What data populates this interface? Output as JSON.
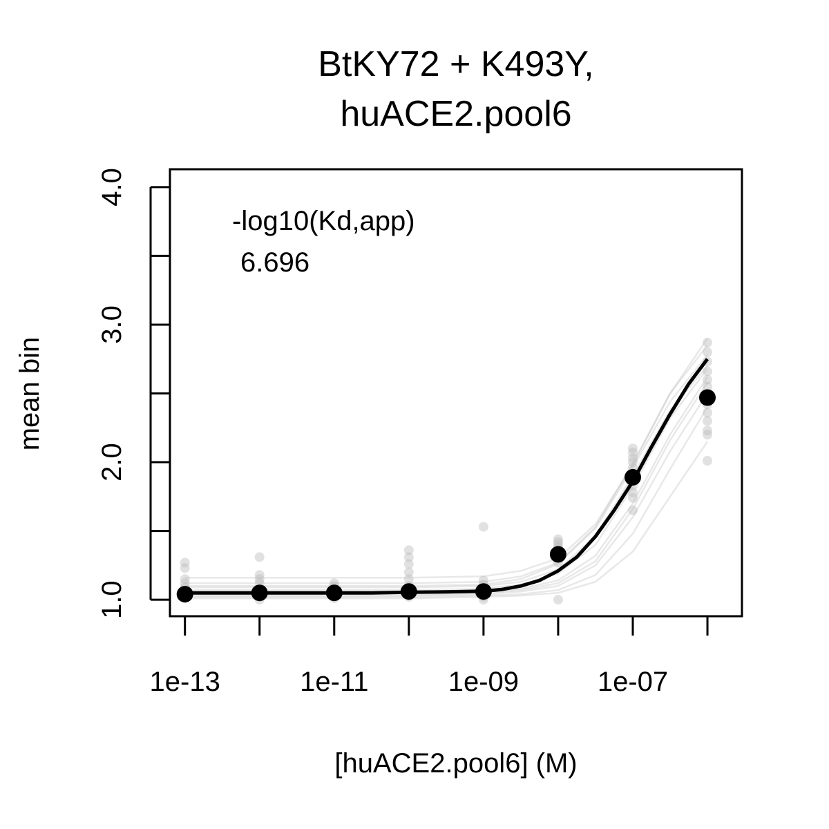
{
  "chart_data": {
    "type": "scatter",
    "title_lines": [
      "BtKY72 + K493Y,",
      "huACE2.pool6"
    ],
    "xlabel": "[huACE2.pool6] (M)",
    "ylabel": "mean bin",
    "x_scale": "log10",
    "xlim": [
      6.3e-14,
      2.9e-06
    ],
    "ylim": [
      0.88,
      4.13
    ],
    "x_ticks": [
      1e-13,
      1e-11,
      1e-09,
      1e-07
    ],
    "x_tick_labels": [
      "1e-13",
      "1e-11",
      "1e-09",
      "1e-07"
    ],
    "x_minor_ticks": [
      1e-12,
      1e-10,
      1e-08,
      1e-06
    ],
    "y_ticks": [
      1.0,
      1.5,
      2.0,
      2.5,
      3.0,
      3.5,
      4.0
    ],
    "y_tick_labels": [
      "1.0",
      "",
      "2.0",
      "",
      "3.0",
      "",
      "4.0"
    ],
    "annotation": {
      "label": "-log10(Kd,app)",
      "value": "6.696"
    },
    "colors": {
      "main": "#000000",
      "replicate": "#bdbdbd"
    },
    "series": [
      {
        "role": "mean",
        "x": [
          1e-13,
          1e-12,
          1e-11,
          1e-10,
          1e-09,
          1e-08,
          1e-07,
          1e-06
        ],
        "y": [
          1.04,
          1.05,
          1.05,
          1.06,
          1.06,
          1.33,
          1.89,
          2.47
        ]
      },
      {
        "role": "replicates",
        "points": [
          [
            1e-13,
            1.27
          ],
          [
            1e-13,
            1.23
          ],
          [
            1e-13,
            1.15
          ],
          [
            1e-13,
            1.12
          ],
          [
            1e-13,
            1.09
          ],
          [
            1e-13,
            1.06
          ],
          [
            1e-13,
            1.03
          ],
          [
            1e-13,
            1.01
          ],
          [
            1e-12,
            1.31
          ],
          [
            1e-12,
            1.18
          ],
          [
            1e-12,
            1.15
          ],
          [
            1e-12,
            1.12
          ],
          [
            1e-12,
            1.08
          ],
          [
            1e-12,
            1.05
          ],
          [
            1e-12,
            1.02
          ],
          [
            1e-12,
            1.0
          ],
          [
            1e-11,
            1.12
          ],
          [
            1e-11,
            1.1
          ],
          [
            1e-11,
            1.08
          ],
          [
            1e-11,
            1.05
          ],
          [
            1e-11,
            1.03
          ],
          [
            1e-11,
            1.01
          ],
          [
            1e-10,
            1.36
          ],
          [
            1e-10,
            1.31
          ],
          [
            1e-10,
            1.26
          ],
          [
            1e-10,
            1.2
          ],
          [
            1e-10,
            1.15
          ],
          [
            1e-10,
            1.1
          ],
          [
            1e-10,
            1.06
          ],
          [
            1e-10,
            1.02
          ],
          [
            1e-09,
            1.53
          ],
          [
            1e-09,
            1.14
          ],
          [
            1e-09,
            1.11
          ],
          [
            1e-09,
            1.08
          ],
          [
            1e-09,
            1.05
          ],
          [
            1e-09,
            1.02
          ],
          [
            1e-09,
            1.0
          ],
          [
            1e-08,
            1.44
          ],
          [
            1e-08,
            1.42
          ],
          [
            1e-08,
            1.4
          ],
          [
            1e-08,
            1.38
          ],
          [
            1e-08,
            1.35
          ],
          [
            1e-08,
            1.3
          ],
          [
            1e-08,
            1.27
          ],
          [
            1e-08,
            1.0
          ],
          [
            1e-07,
            2.1
          ],
          [
            1e-07,
            2.07
          ],
          [
            1e-07,
            2.03
          ],
          [
            1e-07,
            2.0
          ],
          [
            1e-07,
            1.96
          ],
          [
            1e-07,
            1.92
          ],
          [
            1e-07,
            1.87
          ],
          [
            1e-07,
            1.83
          ],
          [
            1e-07,
            1.78
          ],
          [
            1e-07,
            1.74
          ],
          [
            1e-07,
            1.65
          ],
          [
            1e-06,
            2.87
          ],
          [
            1e-06,
            2.8
          ],
          [
            1e-06,
            2.73
          ],
          [
            1e-06,
            2.66
          ],
          [
            1e-06,
            2.6
          ],
          [
            1e-06,
            2.55
          ],
          [
            1e-06,
            2.48
          ],
          [
            1e-06,
            2.42
          ],
          [
            1e-06,
            2.36
          ],
          [
            1e-06,
            2.3
          ],
          [
            1e-06,
            2.23
          ],
          [
            1e-06,
            2.2
          ],
          [
            1e-06,
            2.01
          ]
        ]
      }
    ],
    "fit": {
      "role": "mean-fit",
      "log10_x": [
        -13.0,
        -12.5,
        -12.0,
        -11.5,
        -11.0,
        -10.5,
        -10.0,
        -9.5,
        -9.0,
        -8.75,
        -8.5,
        -8.25,
        -8.0,
        -7.75,
        -7.5,
        -7.25,
        -7.0,
        -6.75,
        -6.5,
        -6.25,
        -6.0
      ],
      "y": [
        1.05,
        1.05,
        1.05,
        1.05,
        1.05,
        1.05,
        1.055,
        1.057,
        1.062,
        1.075,
        1.1,
        1.14,
        1.21,
        1.31,
        1.46,
        1.65,
        1.86,
        2.11,
        2.35,
        2.57,
        2.75
      ]
    },
    "replicate_fits": [
      {
        "log10_x": [
          -13.0,
          -10.0,
          -9.0,
          -8.5,
          -8.0,
          -7.5,
          -7.0,
          -6.5,
          -6.0
        ],
        "y": [
          1.16,
          1.16,
          1.17,
          1.21,
          1.3,
          1.55,
          1.98,
          2.5,
          2.85
        ]
      },
      {
        "log10_x": [
          -13.0,
          -10.0,
          -9.0,
          -8.5,
          -8.0,
          -7.5,
          -7.0,
          -6.5,
          -6.0
        ],
        "y": [
          1.12,
          1.12,
          1.13,
          1.17,
          1.27,
          1.53,
          1.99,
          2.5,
          2.9
        ]
      },
      {
        "log10_x": [
          -13.0,
          -10.0,
          -9.0,
          -8.5,
          -8.0,
          -7.5,
          -7.0,
          -6.5,
          -6.0
        ],
        "y": [
          1.09,
          1.09,
          1.1,
          1.13,
          1.22,
          1.46,
          1.9,
          2.38,
          2.7
        ]
      },
      {
        "log10_x": [
          -13.0,
          -10.0,
          -9.0,
          -8.5,
          -8.0,
          -7.5,
          -7.0,
          -6.5,
          -6.0
        ],
        "y": [
          1.07,
          1.07,
          1.08,
          1.11,
          1.19,
          1.4,
          1.82,
          2.32,
          2.68
        ]
      },
      {
        "log10_x": [
          -13.0,
          -10.0,
          -9.0,
          -8.5,
          -8.0,
          -7.5,
          -7.0,
          -6.5,
          -6.0
        ],
        "y": [
          1.05,
          1.05,
          1.06,
          1.08,
          1.14,
          1.32,
          1.7,
          2.2,
          2.62
        ]
      },
      {
        "log10_x": [
          -13.0,
          -10.0,
          -9.0,
          -8.5,
          -8.0,
          -7.5,
          -7.0,
          -6.5,
          -6.0
        ],
        "y": [
          1.03,
          1.03,
          1.04,
          1.06,
          1.1,
          1.25,
          1.6,
          2.08,
          2.5
        ]
      },
      {
        "log10_x": [
          -13.0,
          -10.0,
          -9.0,
          -8.5,
          -8.0,
          -7.5,
          -7.0,
          -6.5,
          -6.0
        ],
        "y": [
          1.02,
          1.02,
          1.03,
          1.04,
          1.07,
          1.18,
          1.48,
          1.95,
          2.4
        ]
      },
      {
        "log10_x": [
          -13.0,
          -10.0,
          -9.0,
          -8.5,
          -8.0,
          -7.5,
          -7.0,
          -6.5,
          -6.0
        ],
        "y": [
          1.01,
          1.01,
          1.02,
          1.03,
          1.05,
          1.13,
          1.35,
          1.75,
          2.15
        ]
      },
      {
        "log10_x": [
          -13.0,
          -10.0,
          -9.0,
          -8.5,
          -8.0,
          -7.5,
          -7.0,
          -6.5,
          -6.0
        ],
        "y": [
          1.1,
          1.1,
          1.11,
          1.15,
          1.26,
          1.52,
          1.96,
          2.44,
          2.78
        ]
      },
      {
        "log10_x": [
          -13.0,
          -10.0,
          -9.0,
          -8.5,
          -8.0,
          -7.5,
          -7.0,
          -6.5,
          -6.0
        ],
        "y": [
          1.04,
          1.04,
          1.05,
          1.07,
          1.12,
          1.28,
          1.66,
          2.16,
          2.58
        ]
      }
    ],
    "grid": false,
    "legend": "none"
  }
}
